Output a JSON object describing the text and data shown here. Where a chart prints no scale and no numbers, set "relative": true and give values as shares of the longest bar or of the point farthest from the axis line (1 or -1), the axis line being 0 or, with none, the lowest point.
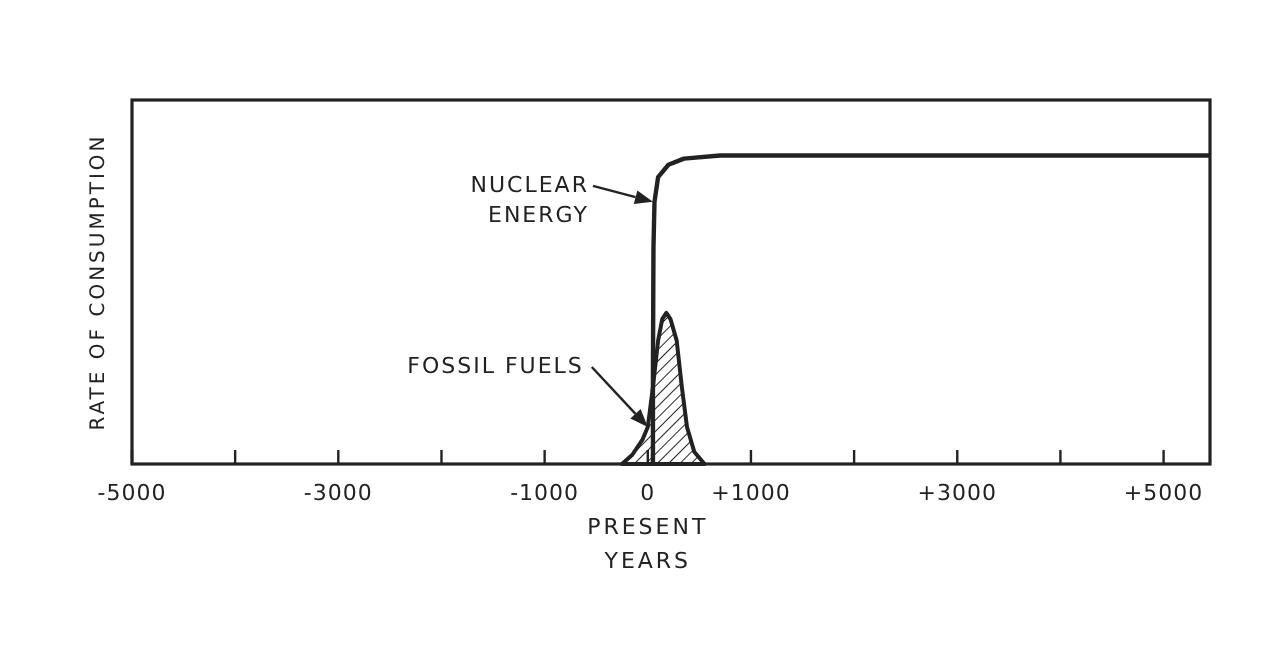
{
  "chart_data": {
    "type": "line",
    "relative": true,
    "xlabel": "YEARS",
    "ylabel": "RATE OF CONSUMPTION",
    "xlim": [
      -5000,
      5450
    ],
    "xticks": [
      {
        "value": -5000,
        "label": "-5000"
      },
      {
        "value": -4000,
        "label": null
      },
      {
        "value": -3000,
        "label": "-3000"
      },
      {
        "value": -2000,
        "label": null
      },
      {
        "value": -1000,
        "label": "-1000"
      },
      {
        "value": 0,
        "label": "0"
      },
      {
        "value": 1000,
        "label": "+1000"
      },
      {
        "value": 2000,
        "label": null
      },
      {
        "value": 3000,
        "label": "+3000"
      },
      {
        "value": 4000,
        "label": null
      },
      {
        "value": 5000,
        "label": "+5000"
      }
    ],
    "grid": false,
    "series": [
      {
        "color": "#222222",
        "x": [
          50,
          50,
          55,
          65,
          100,
          200,
          350,
          700,
          5450
        ],
        "values": [
          0,
          0.3,
          0.7,
          0.85,
          0.93,
          0.97,
          0.99,
          1,
          1
        ]
      },
      {
        "type": "area",
        "color": "#222222",
        "x": [
          -250,
          -150,
          -50,
          0,
          50,
          100,
          140,
          180,
          220,
          280,
          330,
          380,
          450,
          550
        ],
        "values": [
          0,
          0.03,
          0.08,
          0.12,
          0.25,
          0.4,
          0.47,
          0.49,
          0.47,
          0.4,
          0.25,
          0.12,
          0.04,
          0
        ]
      }
    ],
    "annotations": [
      {
        "text": "NUCLEAR ENERGY",
        "x": 50,
        "y": 0.85
      },
      {
        "text": "FOSSIL FUELS",
        "x": 0,
        "y": 0.12
      },
      "PRESENT"
    ]
  }
}
